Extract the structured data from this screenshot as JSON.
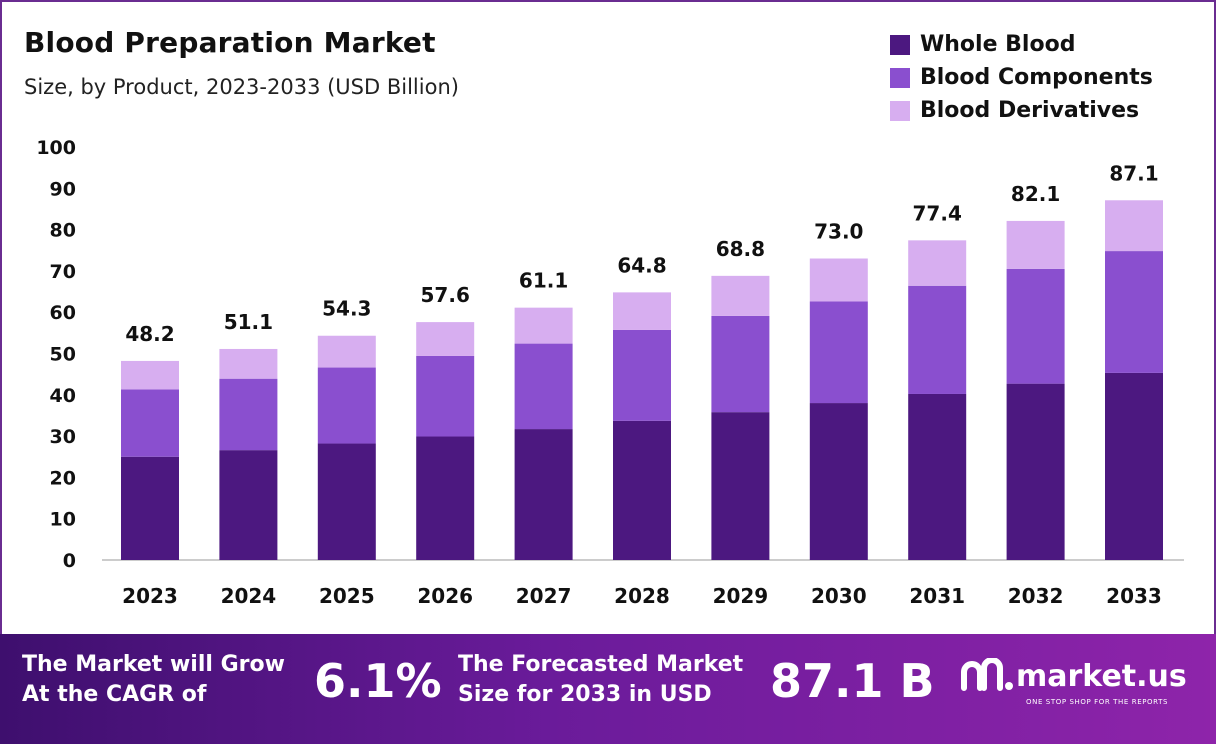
{
  "header": {
    "title": "Blood Preparation Market",
    "subtitle": "Size, by Product, 2023-2033 (USD Billion)"
  },
  "colors": {
    "whole_blood": "#4c1880",
    "blood_components": "#8a4fcf",
    "blood_derivatives": "#d7aef0",
    "border": "#6a2c91",
    "axis": "#bbbbbb"
  },
  "chart_data": {
    "type": "bar",
    "stacked": true,
    "title": "Blood Preparation Market",
    "subtitle": "Size, by Product, 2023-2033 (USD Billion)",
    "categories": [
      "2023",
      "2024",
      "2025",
      "2026",
      "2027",
      "2028",
      "2029",
      "2030",
      "2031",
      "2032",
      "2033"
    ],
    "series": [
      {
        "name": "Whole Blood",
        "color": "#4c1880",
        "values": [
          25.0,
          26.6,
          28.2,
          29.9,
          31.7,
          33.7,
          35.8,
          38.0,
          40.2,
          42.7,
          45.3
        ]
      },
      {
        "name": "Blood Components",
        "color": "#8a4fcf",
        "values": [
          16.3,
          17.3,
          18.4,
          19.5,
          20.7,
          22.0,
          23.3,
          24.6,
          26.2,
          27.8,
          29.5
        ]
      },
      {
        "name": "Blood Derivatives",
        "color": "#d7aef0",
        "values": [
          6.9,
          7.2,
          7.7,
          8.2,
          8.7,
          9.1,
          9.7,
          10.4,
          11.0,
          11.6,
          12.3
        ]
      }
    ],
    "totals": [
      "48.2",
      "51.1",
      "54.3",
      "57.6",
      "61.1",
      "64.8",
      "68.8",
      "73.0",
      "77.4",
      "82.1",
      "87.1"
    ],
    "y_ticks": [
      "0",
      "10",
      "20",
      "30",
      "40",
      "50",
      "60",
      "70",
      "80",
      "90",
      "100"
    ],
    "ylim": [
      0,
      100
    ],
    "xlabel": "",
    "ylabel": "",
    "grid": false,
    "legend_position": "top-right"
  },
  "footer": {
    "cagr_text_line1": "The Market will Grow",
    "cagr_text_line2": "At the CAGR of",
    "cagr_value": "6.1%",
    "forecast_text_line1": "The Forecasted Market",
    "forecast_text_line2": "Size for 2033 in USD",
    "forecast_value": "87.1 B",
    "brand_name": "market.us",
    "brand_tagline": "ONE STOP SHOP FOR THE REPORTS",
    "logo_icon": "market-us-logo-icon"
  }
}
